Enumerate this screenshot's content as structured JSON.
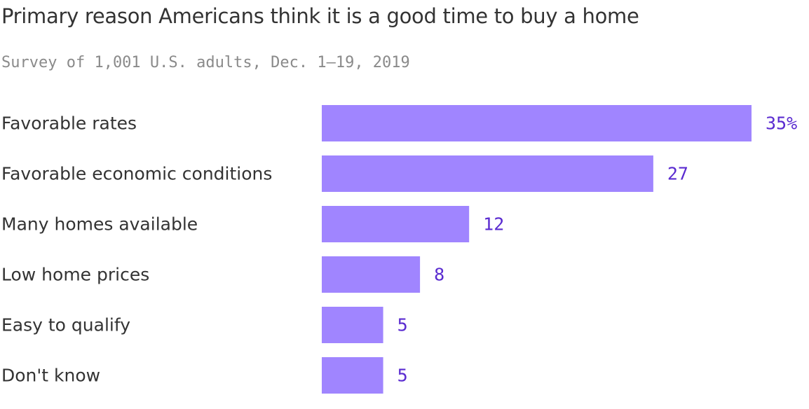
{
  "chart_data": {
    "type": "bar",
    "orientation": "horizontal",
    "title": "Primary reason Americans think it is a good time to buy a home",
    "subtitle": "Survey of 1,001 U.S. adults, Dec. 1–19, 2019",
    "categories": [
      "Favorable rates",
      "Favorable economic conditions",
      "Many homes available",
      "Low home prices",
      "Easy to qualify",
      "Don't know"
    ],
    "values": [
      35,
      27,
      12,
      8,
      5,
      5
    ],
    "value_labels": [
      "35%",
      "27",
      "12",
      "8",
      "5",
      "5"
    ],
    "xlabel": "",
    "ylabel": "",
    "xlim": [
      0,
      35
    ],
    "grid": false,
    "legend": "none",
    "colors": {
      "bar": "#a085ff",
      "value_text": "#5a2bd0",
      "category_text": "#333333"
    }
  }
}
